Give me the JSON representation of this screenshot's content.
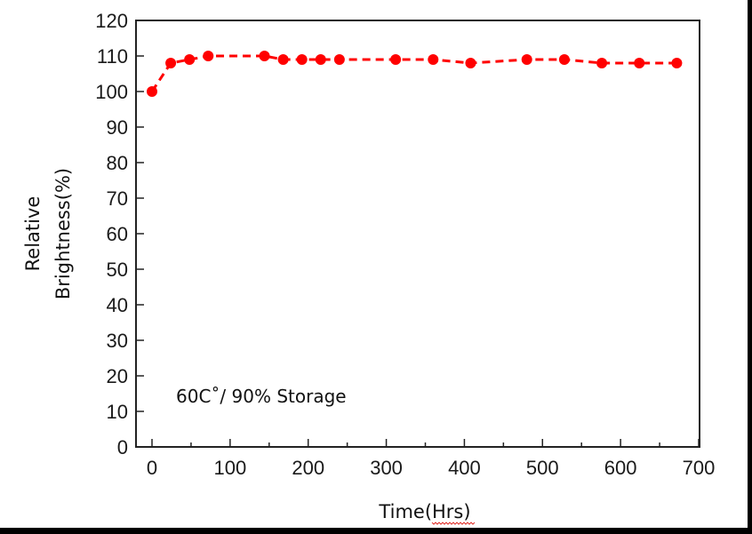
{
  "chart_data": {
    "type": "line",
    "title": "",
    "xlabel": "Time(Hrs)",
    "ylabel_lines": [
      "Relative",
      "Brightness(%)"
    ],
    "ylabel": "Relative Brightness(%)",
    "annotation": "60C˚/ 90% Storage",
    "xlim": [
      -20,
      700
    ],
    "ylim": [
      0,
      120
    ],
    "x_ticks": [
      0,
      100,
      200,
      300,
      400,
      500,
      600,
      700
    ],
    "x_minor_ticks": [
      50,
      150,
      250,
      350,
      450,
      550,
      650
    ],
    "y_ticks": [
      0,
      10,
      20,
      30,
      40,
      50,
      60,
      70,
      80,
      90,
      100,
      110,
      120
    ],
    "grid": false,
    "legend": null,
    "series": [
      {
        "name": "Relative Brightness",
        "color": "#ff0000",
        "line_style": "dashed",
        "marker": "circle",
        "x": [
          0,
          24,
          48,
          72,
          144,
          168,
          192,
          216,
          240,
          312,
          360,
          408,
          480,
          528,
          576,
          624,
          672
        ],
        "values": [
          100,
          108,
          109,
          110,
          110,
          109,
          109,
          109,
          109,
          109,
          109,
          108,
          109,
          109,
          108,
          108,
          108
        ]
      }
    ]
  }
}
